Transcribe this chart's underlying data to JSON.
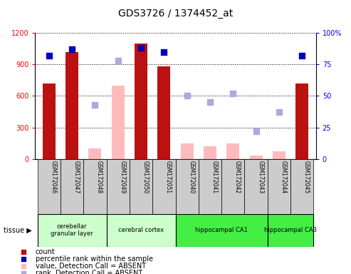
{
  "title": "GDS3726 / 1374452_at",
  "samples": [
    "GSM172046",
    "GSM172047",
    "GSM172048",
    "GSM172049",
    "GSM172050",
    "GSM172051",
    "GSM172040",
    "GSM172041",
    "GSM172042",
    "GSM172043",
    "GSM172044",
    "GSM172045"
  ],
  "count_present": [
    720,
    1020,
    null,
    null,
    1100,
    880,
    null,
    null,
    null,
    null,
    null,
    720
  ],
  "count_absent": [
    null,
    null,
    100,
    700,
    null,
    null,
    150,
    120,
    150,
    30,
    70,
    null
  ],
  "rank_present": [
    82,
    87,
    null,
    null,
    88,
    85,
    null,
    null,
    null,
    null,
    null,
    82
  ],
  "rank_absent": [
    null,
    null,
    43,
    78,
    null,
    null,
    50,
    45,
    52,
    22,
    37,
    null
  ],
  "tissue_groups": [
    {
      "name": "cerebellar\ngranular layer",
      "indices": [
        0,
        1,
        2
      ],
      "color": "#ccffcc"
    },
    {
      "name": "cerebral cortex",
      "indices": [
        3,
        4,
        5
      ],
      "color": "#ccffcc"
    },
    {
      "name": "hippocampal CA1",
      "indices": [
        6,
        7,
        8,
        9
      ],
      "color": "#44ee44"
    },
    {
      "name": "hippocampal CA3",
      "indices": [
        10,
        11
      ],
      "color": "#44ee44"
    }
  ],
  "ylim_left": [
    0,
    1200
  ],
  "ylim_right": [
    0,
    100
  ],
  "yticks_left": [
    0,
    300,
    600,
    900,
    1200
  ],
  "yticks_right": [
    0,
    25,
    50,
    75,
    100
  ],
  "ytick_labels_right": [
    "0",
    "25",
    "50",
    "75",
    "100%"
  ],
  "bar_color_present": "#bb1111",
  "bar_color_absent": "#ffbbbb",
  "dot_color_present": "#0000bb",
  "dot_color_absent": "#aaaadd",
  "bar_width": 0.55,
  "sample_box_color": "#cccccc",
  "legend_items": [
    {
      "color": "#bb1111",
      "label": "count"
    },
    {
      "color": "#0000bb",
      "label": "percentile rank within the sample"
    },
    {
      "color": "#ffbbbb",
      "label": "value, Detection Call = ABSENT"
    },
    {
      "color": "#aaaadd",
      "label": "rank, Detection Call = ABSENT"
    }
  ]
}
